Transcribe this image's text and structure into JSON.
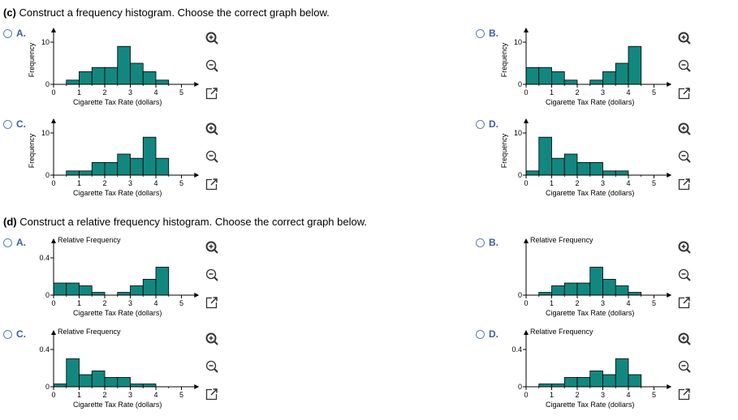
{
  "section_c": {
    "letter": "(c)",
    "text": "Construct a frequency histogram. Choose the correct graph below."
  },
  "section_d": {
    "letter": "(d)",
    "text": "Construct a relative frequency histogram. Choose the correct graph below."
  },
  "colors": {
    "bar_fill": "#12877f",
    "bar_stroke": "#000000",
    "option_letter": "#3d5ca8"
  },
  "tools": [
    "zoom-in-icon",
    "zoom-out-icon",
    "open-new-window-icon"
  ],
  "chart_data": [
    {
      "id": "c-A",
      "letter": "A.",
      "type": "bar",
      "ylabel": "Frequency",
      "xlabel": "Cigarette Tax Rate (dollars)",
      "x_ticks": [
        0,
        1,
        2,
        3,
        4,
        5
      ],
      "y_ticks": [
        0,
        10
      ],
      "ylim": [
        0,
        11
      ],
      "xlim": [
        0,
        5
      ],
      "bin_width": 0.5,
      "values": [
        0,
        1,
        3,
        4,
        4,
        9,
        5,
        3,
        1,
        0
      ]
    },
    {
      "id": "c-B",
      "letter": "B.",
      "type": "bar",
      "ylabel": "Frequency",
      "xlabel": "Cigarette Tax Rate (dollars)",
      "x_ticks": [
        0,
        1,
        2,
        3,
        4,
        5
      ],
      "y_ticks": [
        0,
        10
      ],
      "ylim": [
        0,
        11
      ],
      "xlim": [
        0,
        5
      ],
      "bin_width": 0.5,
      "values": [
        4,
        4,
        3,
        1,
        0,
        1,
        3,
        5,
        9,
        0
      ]
    },
    {
      "id": "c-C",
      "letter": "C.",
      "type": "bar",
      "ylabel": "Frequency",
      "xlabel": "Cigarette Tax Rate (dollars)",
      "x_ticks": [
        0,
        1,
        2,
        3,
        4,
        5
      ],
      "y_ticks": [
        0,
        10
      ],
      "ylim": [
        0,
        11
      ],
      "xlim": [
        0,
        5
      ],
      "bin_width": 0.5,
      "values": [
        0,
        1,
        1,
        3,
        3,
        5,
        4,
        9,
        4,
        0
      ]
    },
    {
      "id": "c-D",
      "letter": "D.",
      "type": "bar",
      "ylabel": "Frequency",
      "xlabel": "Cigarette Tax Rate (dollars)",
      "x_ticks": [
        0,
        1,
        2,
        3,
        4,
        5
      ],
      "y_ticks": [
        0,
        10
      ],
      "ylim": [
        0,
        11
      ],
      "xlim": [
        0,
        5
      ],
      "bin_width": 0.5,
      "values": [
        1,
        9,
        4,
        5,
        3,
        3,
        1,
        1,
        0,
        0
      ]
    },
    {
      "id": "d-A",
      "letter": "A.",
      "type": "bar",
      "ylabel": "Relative Frequency",
      "xlabel": "Cigarette Tax Rate (dollars)",
      "x_ticks": [
        0,
        1,
        2,
        3,
        4,
        5
      ],
      "y_ticks": [
        0,
        0.4
      ],
      "ylim": [
        0,
        0.44
      ],
      "xlim": [
        0,
        5
      ],
      "bin_width": 0.5,
      "values": [
        0.13,
        0.13,
        0.1,
        0.03,
        0,
        0.03,
        0.1,
        0.17,
        0.3,
        0
      ]
    },
    {
      "id": "d-B",
      "letter": "B.",
      "type": "bar",
      "ylabel": "Relative Frequency",
      "xlabel": "Cigarette Tax Rate (dollars)",
      "x_ticks": [
        0,
        1,
        2,
        3,
        4,
        5
      ],
      "y_ticks": [
        0
      ],
      "ylim": [
        0,
        0.44
      ],
      "xlim": [
        0,
        5
      ],
      "bin_width": 0.5,
      "values": [
        0,
        0.03,
        0.1,
        0.13,
        0.13,
        0.3,
        0.17,
        0.1,
        0.03,
        0
      ]
    },
    {
      "id": "d-C",
      "letter": "C.",
      "type": "bar",
      "ylabel": "Relative Frequency",
      "xlabel": "Cigarette Tax Rate (dollars)",
      "x_ticks": [
        0,
        1,
        2,
        3,
        4,
        5
      ],
      "y_ticks": [
        0,
        0.4
      ],
      "ylim": [
        0,
        0.44
      ],
      "xlim": [
        0,
        5
      ],
      "bin_width": 0.5,
      "values": [
        0.03,
        0.3,
        0.13,
        0.17,
        0.1,
        0.1,
        0.03,
        0.03,
        0,
        0
      ]
    },
    {
      "id": "d-D",
      "letter": "D.",
      "type": "bar",
      "ylabel": "Relative Frequency",
      "xlabel": "Cigarette Tax Rate (dollars)",
      "x_ticks": [
        0,
        1,
        2,
        3,
        4,
        5
      ],
      "y_ticks": [
        0,
        0.4
      ],
      "ylim": [
        0,
        0.44
      ],
      "xlim": [
        0,
        5
      ],
      "bin_width": 0.5,
      "values": [
        0,
        0.03,
        0.03,
        0.1,
        0.1,
        0.17,
        0.13,
        0.3,
        0.13,
        0
      ]
    }
  ]
}
